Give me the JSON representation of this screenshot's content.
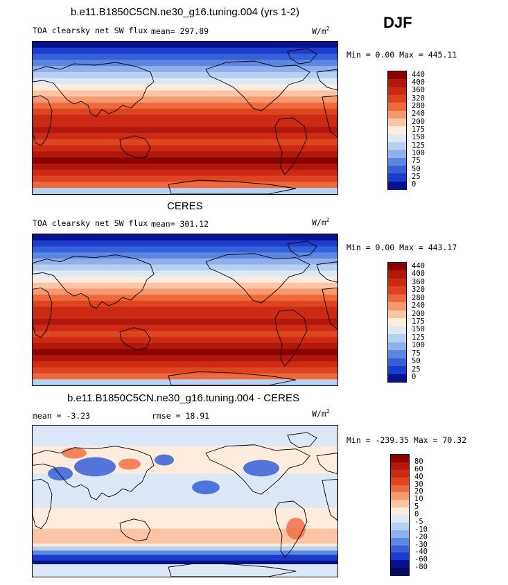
{
  "season": "DJF",
  "panels": [
    {
      "title": "b.e11.B1850C5CN.ne30_g16.tuning.004 (yrs 1-2)",
      "variable": "TOA clearsky net SW flux",
      "stats": "mean= 297.89",
      "units": "W/m",
      "units_exp": "2",
      "minmax": "Min =   0.00 Max = 445.11",
      "kind": "abs",
      "colorbar": {
        "labels": [
          "440",
          "400",
          "360",
          "320",
          "280",
          "240",
          "200",
          "175",
          "150",
          "125",
          "100",
          "75",
          "50",
          "25",
          "0"
        ],
        "colors": [
          "#8b0000",
          "#b0180c",
          "#cc2a14",
          "#dd4420",
          "#ee6a3c",
          "#f59a70",
          "#fbc4a4",
          "#fdecdd",
          "#dde8f6",
          "#b8d0f0",
          "#8fb0ea",
          "#5c87e0",
          "#3560d8",
          "#1a3ccd",
          "#08128a"
        ]
      }
    },
    {
      "title": "CERES",
      "variable": "TOA clearsky net SW flux",
      "stats": "mean= 301.12",
      "units": "W/m",
      "units_exp": "2",
      "minmax": "Min =   0.00 Max = 443.17",
      "kind": "abs",
      "colorbar": {
        "labels": [
          "440",
          "400",
          "360",
          "320",
          "280",
          "240",
          "200",
          "175",
          "150",
          "125",
          "100",
          "75",
          "50",
          "25",
          "0"
        ],
        "colors": [
          "#8b0000",
          "#b0180c",
          "#cc2a14",
          "#dd4420",
          "#ee6a3c",
          "#f59a70",
          "#fbc4a4",
          "#fdecdd",
          "#dde8f6",
          "#b8d0f0",
          "#8fb0ea",
          "#5c87e0",
          "#3560d8",
          "#1a3ccd",
          "#08128a"
        ]
      }
    },
    {
      "title": "b.e11.B1850C5CN.ne30_g16.tuning.004 - CERES",
      "mean": "mean =  -3.23",
      "rmse": "rmse =   18.91",
      "units": "W/m",
      "units_exp": "2",
      "minmax": "Min = -239.35 Max =  70.32",
      "kind": "diff",
      "colorbar": {
        "labels": [
          "80",
          "60",
          "40",
          "30",
          "20",
          "10",
          "5",
          "0",
          "-5",
          "-10",
          "-20",
          "-30",
          "-40",
          "-60",
          "-80"
        ],
        "colors": [
          "#8b0000",
          "#b0180c",
          "#cc2a14",
          "#dd4420",
          "#ee6a3c",
          "#f59a70",
          "#fbc4a4",
          "#fdecdd",
          "#dde8f6",
          "#b8d0f0",
          "#8fb0ea",
          "#5c87e0",
          "#3560d8",
          "#1a3ccd",
          "#08128a",
          "#050a60"
        ]
      }
    }
  ]
}
